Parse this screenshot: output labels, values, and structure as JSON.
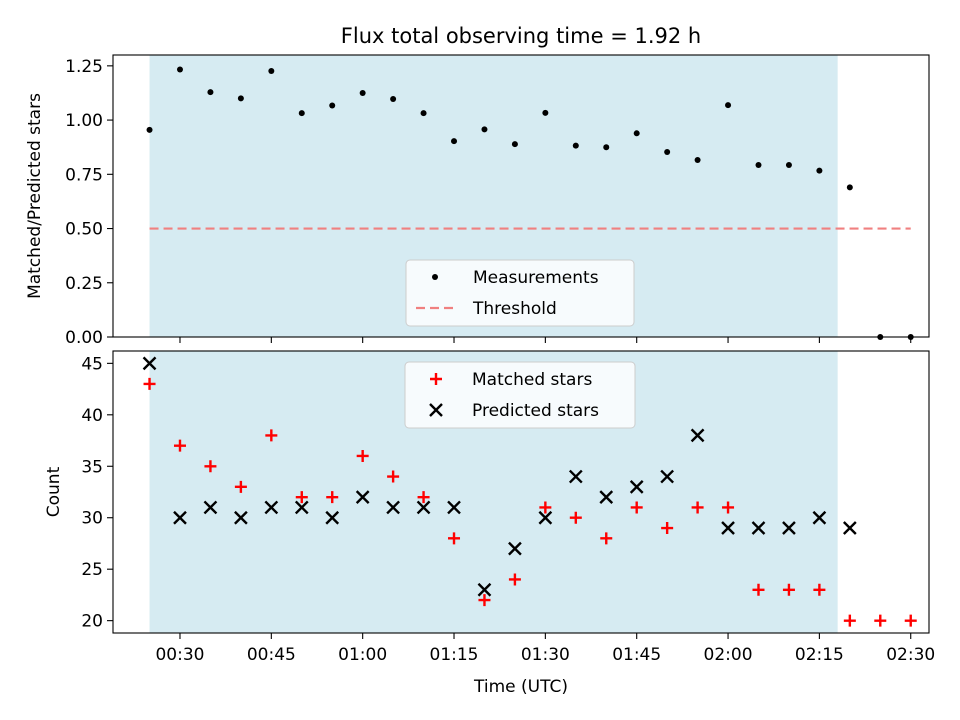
{
  "title": "Flux total observing time = 1.92 h",
  "colors": {
    "shade": "#add8e6",
    "measurement": "#000000",
    "threshold": "#f08080",
    "matched": "#ff0000",
    "predicted": "#000000"
  },
  "chart_data": [
    {
      "type": "scatter",
      "panel": "top",
      "ylabel": "Matched/Predicted stars",
      "xlim": [
        "00:19:00",
        "02:33:00"
      ],
      "ylim": [
        0,
        1.3
      ],
      "yticks": [
        0,
        0.25,
        0.5,
        0.75,
        1.0,
        1.25
      ],
      "ytick_labels": [
        "0.00",
        "0.25",
        "0.50",
        "0.75",
        "1.00",
        "1.25"
      ],
      "shaded_span": [
        "00:25:00",
        "02:18:00"
      ],
      "legend": {
        "placement": "lower center",
        "entries": [
          "Measurements",
          "Threshold"
        ]
      },
      "series": [
        {
          "name": "Measurements",
          "marker": "dot",
          "x": [
            "00:25",
            "00:30",
            "00:35",
            "00:40",
            "00:45",
            "00:50",
            "00:55",
            "01:00",
            "01:05",
            "01:10",
            "01:15",
            "01:20",
            "01:25",
            "01:30",
            "01:35",
            "01:40",
            "01:45",
            "01:50",
            "01:55",
            "02:00",
            "02:05",
            "02:10",
            "02:15",
            "02:20",
            "02:25",
            "02:30"
          ],
          "y": [
            0.955,
            1.233,
            1.129,
            1.1,
            1.226,
            1.032,
            1.067,
            1.125,
            1.097,
            1.032,
            0.903,
            0.957,
            0.889,
            1.033,
            0.882,
            0.875,
            0.939,
            0.853,
            0.816,
            1.069,
            0.793,
            0.793,
            0.767,
            0.69,
            0.0,
            0.0
          ]
        },
        {
          "name": "Threshold",
          "style": "dashed",
          "x": [
            "00:25",
            "02:30"
          ],
          "y": [
            0.5,
            0.5
          ]
        }
      ]
    },
    {
      "type": "scatter",
      "panel": "bottom",
      "ylabel": "Count",
      "xlabel": "Time (UTC)",
      "xlim": [
        "00:19:00",
        "02:33:00"
      ],
      "ylim": [
        18.8,
        46.2
      ],
      "yticks": [
        20,
        25,
        30,
        35,
        40,
        45
      ],
      "ytick_labels": [
        "20",
        "25",
        "30",
        "35",
        "40",
        "45"
      ],
      "xticks": [
        "00:30",
        "00:45",
        "01:00",
        "01:15",
        "01:30",
        "01:45",
        "02:00",
        "02:15",
        "02:30"
      ],
      "shaded_span": [
        "00:25:00",
        "02:18:00"
      ],
      "legend": {
        "placement": "upper center",
        "entries": [
          "Matched stars",
          "Predicted stars"
        ]
      },
      "x": [
        "00:25",
        "00:30",
        "00:35",
        "00:40",
        "00:45",
        "00:50",
        "00:55",
        "01:00",
        "01:05",
        "01:10",
        "01:15",
        "01:20",
        "01:25",
        "01:30",
        "01:35",
        "01:40",
        "01:45",
        "01:50",
        "01:55",
        "02:00",
        "02:05",
        "02:10",
        "02:15",
        "02:20",
        "02:25",
        "02:30"
      ],
      "series": [
        {
          "name": "Matched stars",
          "marker": "plus",
          "values": [
            43,
            37,
            35,
            33,
            38,
            32,
            32,
            36,
            34,
            32,
            28,
            22,
            24,
            31,
            30,
            28,
            31,
            29,
            31,
            31,
            23,
            23,
            23,
            20,
            20,
            20
          ]
        },
        {
          "name": "Predicted stars",
          "marker": "x",
          "values": [
            45,
            30,
            31,
            30,
            31,
            31,
            30,
            32,
            31,
            31,
            31,
            23,
            27,
            30,
            34,
            32,
            33,
            34,
            38,
            29,
            29,
            29,
            30,
            29,
            null,
            null
          ]
        }
      ]
    }
  ]
}
